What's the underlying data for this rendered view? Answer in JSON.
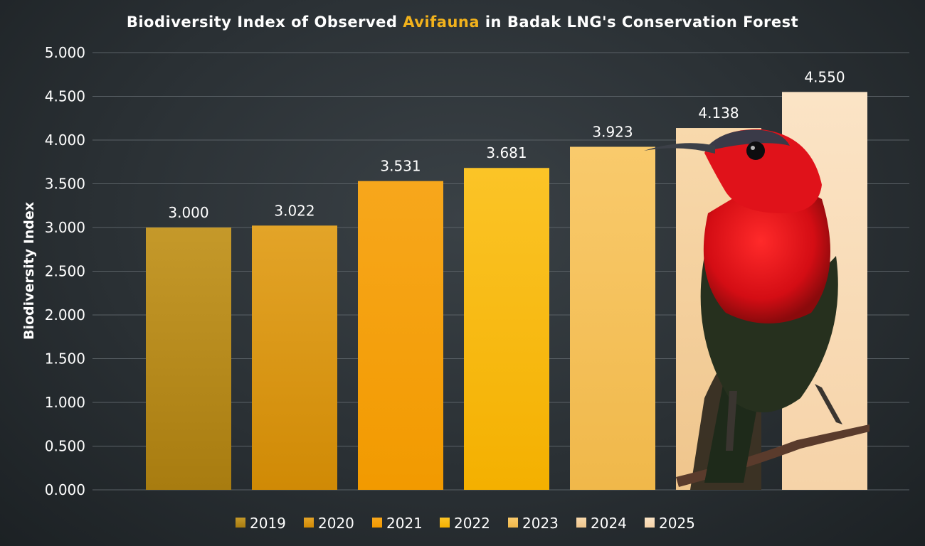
{
  "chart_data": {
    "type": "bar",
    "title_parts": [
      "Biodiversity Index of Observed ",
      "Avifauna",
      " in Badak LNG's Conservation Forest"
    ],
    "ylabel": "Biodiversity Index",
    "xlabel": "",
    "ylim": [
      0,
      5
    ],
    "yticks": [
      "0.000",
      "0.500",
      "1.000",
      "1.500",
      "2.000",
      "2.500",
      "3.000",
      "3.500",
      "4.000",
      "4.500",
      "5.000"
    ],
    "grid": true,
    "legend_position": "bottom",
    "categories": [
      "2019",
      "2020",
      "2021",
      "2022",
      "2023",
      "2024",
      "2025"
    ],
    "values": [
      3.0,
      3.022,
      3.531,
      3.681,
      3.923,
      4.138,
      4.55
    ],
    "value_labels": [
      "3.000",
      "3.022",
      "3.531",
      "3.681",
      "3.923",
      "4.138",
      "4.550"
    ],
    "colors": [
      [
        "#c5992a",
        "#a87c10"
      ],
      [
        "#e3a428",
        "#d08a05"
      ],
      [
        "#f7a71c",
        "#f29a00"
      ],
      [
        "#fbc427",
        "#f4b000"
      ],
      [
        "#f9ca6c",
        "#f0b84a"
      ],
      [
        "#f8d9ac",
        "#efc58c"
      ],
      [
        "#fbe4c6",
        "#f6d3a8"
      ]
    ],
    "highlight_color": "#f2b21c",
    "decoration": "red-bird-photo"
  }
}
